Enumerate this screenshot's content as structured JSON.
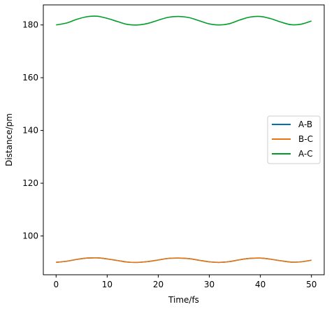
{
  "chart_data": {
    "type": "line",
    "title": "",
    "xlabel": "Time/fs",
    "ylabel": "Distance/pm",
    "xlim": [
      -2.5,
      52.5
    ],
    "ylim": [
      85.3,
      187.6
    ],
    "xticks": [
      0,
      10,
      20,
      30,
      40,
      50
    ],
    "yticks": [
      100,
      120,
      140,
      160,
      180
    ],
    "grid": false,
    "legend": "center-right",
    "series": [
      {
        "name": "A-B",
        "color": "#0072b2",
        "x": [
          0,
          2,
          4,
          6,
          8,
          10,
          12,
          14,
          16,
          18,
          20,
          22,
          24,
          26,
          28,
          30,
          32,
          34,
          36,
          38,
          40,
          42,
          44,
          46,
          48,
          50
        ],
        "y": [
          90.0,
          90.4,
          91.1,
          91.6,
          91.7,
          91.3,
          90.7,
          90.1,
          90.0,
          90.3,
          90.9,
          91.5,
          91.6,
          91.4,
          90.8,
          90.2,
          90.0,
          90.3,
          91.0,
          91.5,
          91.6,
          91.2,
          90.6,
          90.1,
          90.2,
          90.8
        ]
      },
      {
        "name": "B-C",
        "color": "#e87511",
        "x": [
          0,
          2,
          4,
          6,
          8,
          10,
          12,
          14,
          16,
          18,
          20,
          22,
          24,
          26,
          28,
          30,
          32,
          34,
          36,
          38,
          40,
          42,
          44,
          46,
          48,
          50
        ],
        "y": [
          90.0,
          90.4,
          91.1,
          91.6,
          91.7,
          91.3,
          90.7,
          90.1,
          90.0,
          90.3,
          90.9,
          91.5,
          91.6,
          91.4,
          90.8,
          90.2,
          90.0,
          90.3,
          91.0,
          91.5,
          91.6,
          91.2,
          90.6,
          90.1,
          90.2,
          90.8
        ]
      },
      {
        "name": "A-C",
        "color": "#009e28",
        "x": [
          0,
          2,
          4,
          6,
          8,
          10,
          12,
          14,
          16,
          18,
          20,
          22,
          24,
          26,
          28,
          30,
          32,
          34,
          36,
          38,
          40,
          42,
          44,
          46,
          48,
          50
        ],
        "y": [
          180.0,
          180.7,
          182.1,
          183.1,
          183.3,
          182.5,
          181.3,
          180.2,
          180.0,
          180.6,
          181.8,
          182.9,
          183.2,
          182.8,
          181.6,
          180.4,
          180.0,
          180.5,
          181.9,
          183.0,
          183.2,
          182.4,
          181.1,
          180.1,
          180.3,
          181.5
        ]
      }
    ]
  }
}
